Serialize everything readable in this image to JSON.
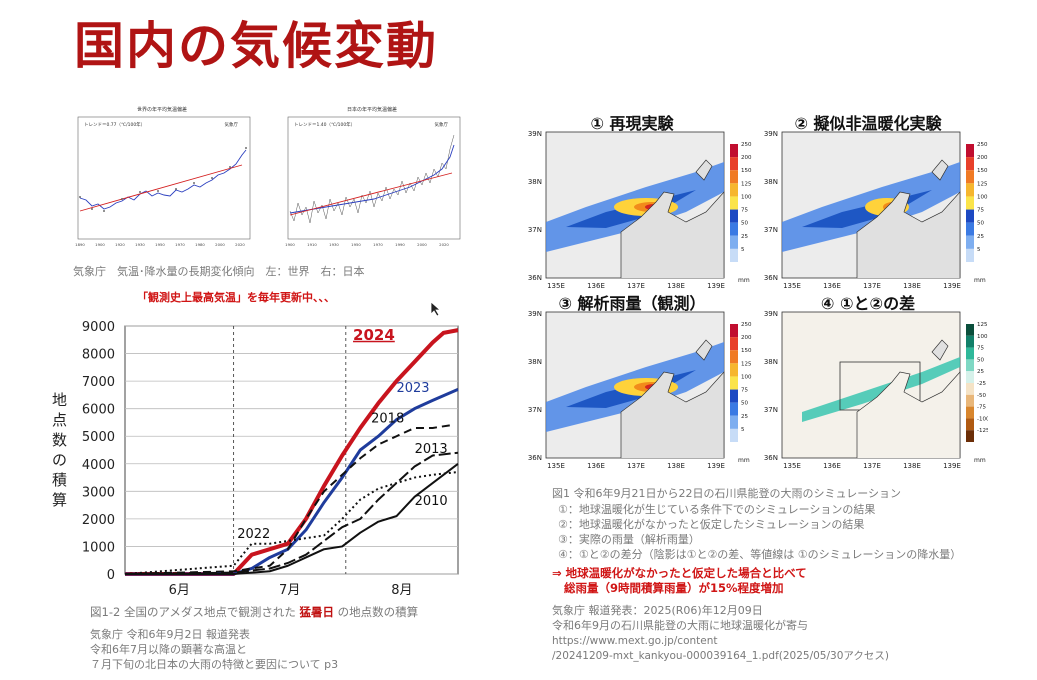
{
  "slide": {
    "title": "国内の気候変動"
  },
  "top_charts": {
    "left": {
      "title": "世界の年平均気温偏差",
      "trend": "トレンド＝0.77（℃/100年）",
      "legend": "気象庁"
    },
    "right": {
      "title": "日本の年平均気温偏差",
      "trend": "トレンド＝1.40（℃/100年）",
      "legend": "気象庁"
    },
    "caption": "気象庁　気温･降水量の長期変化傾向　左：世界　右：日本"
  },
  "headline": "「観測史上最高気温」を毎年更新中、、、",
  "main_chart": {
    "ylabel_chars": [
      "地",
      "点",
      "数",
      "の",
      "積",
      "算"
    ],
    "fig_caption_pre": "図1-2 全国のアメダス地点で観測された ",
    "fig_caption_em": "猛暑日",
    "fig_caption_post": " の地点数の積算",
    "source_lines": [
      "気象庁 令和6年9月2日 報道発表",
      "令和6年7月以降の顕著な高温と",
      "７月下旬の北日本の大雨の特徴と要因について p3"
    ]
  },
  "chart_data": {
    "type": "line",
    "xlabel": "",
    "ylabel": "地点数の積算",
    "x_ticks": [
      "6月",
      "7月",
      "8月"
    ],
    "ylim": [
      0,
      9000
    ],
    "y_ticks": [
      0,
      1000,
      2000,
      3000,
      4000,
      5000,
      6000,
      7000,
      8000,
      9000
    ],
    "x_range_days": [
      0,
      92
    ],
    "series": [
      {
        "name": "2024",
        "color": "#c8141e",
        "dash": "",
        "width": 4,
        "x": [
          0,
          30,
          35,
          40,
          45,
          50,
          55,
          60,
          65,
          70,
          75,
          80,
          85,
          88,
          92
        ],
        "y": [
          0,
          0,
          700,
          900,
          1100,
          2000,
          3200,
          4300,
          5300,
          6200,
          7000,
          7700,
          8400,
          8750,
          8850
        ]
      },
      {
        "name": "2023",
        "color": "#1f3c9c",
        "dash": "",
        "width": 3,
        "x": [
          0,
          30,
          35,
          40,
          45,
          50,
          55,
          60,
          65,
          70,
          75,
          80,
          85,
          92
        ],
        "y": [
          0,
          0,
          200,
          600,
          900,
          1600,
          2600,
          3500,
          4500,
          5000,
          5600,
          6000,
          6300,
          6700
        ]
      },
      {
        "name": "2018",
        "color": "#111111",
        "dash": "8,5",
        "width": 2,
        "x": [
          0,
          30,
          40,
          45,
          50,
          55,
          60,
          65,
          70,
          75,
          80,
          85,
          90
        ],
        "y": [
          0,
          100,
          300,
          900,
          2000,
          3000,
          3600,
          4200,
          4700,
          5000,
          5300,
          5300,
          5400
        ]
      },
      {
        "name": "2013",
        "color": "#111111",
        "dash": "12,4",
        "width": 2,
        "x": [
          0,
          30,
          40,
          45,
          50,
          55,
          60,
          65,
          70,
          75,
          80,
          85,
          92
        ],
        "y": [
          0,
          50,
          200,
          400,
          700,
          1200,
          1700,
          2000,
          2700,
          3300,
          3900,
          4300,
          4400
        ]
      },
      {
        "name": "2010",
        "color": "#111111",
        "dash": "",
        "width": 2,
        "x": [
          0,
          30,
          40,
          45,
          50,
          55,
          60,
          65,
          70,
          75,
          80,
          85,
          92
        ],
        "y": [
          0,
          0,
          100,
          300,
          600,
          900,
          1000,
          1500,
          1900,
          2100,
          2800,
          3300,
          4000
        ]
      },
      {
        "name": "2022",
        "color": "#111111",
        "dash": "2,3",
        "width": 2,
        "x": [
          0,
          30,
          35,
          40,
          45,
          50,
          55,
          60,
          65,
          70,
          75,
          80,
          85,
          92
        ],
        "y": [
          0,
          300,
          1100,
          1100,
          1200,
          1300,
          1400,
          2000,
          2700,
          3100,
          3300,
          3500,
          3600,
          3700
        ]
      }
    ]
  },
  "sim_panels": {
    "p1_title": "① 再現実験",
    "p2_title": "② 擬似非温暖化実験",
    "p3_title": "③ 解析雨量（観測）",
    "p4_title": "④ ①と②の差",
    "lat_labels": [
      "39N",
      "38N",
      "37N",
      "36N"
    ],
    "lon_labels": [
      "135E",
      "136E",
      "137E",
      "138E",
      "139E"
    ],
    "rain_scale": [
      "250",
      "200",
      "150",
      "125",
      "100",
      "75",
      "50",
      "25",
      "5"
    ],
    "diff_scale": [
      "125",
      "100",
      "75",
      "50",
      "25",
      "-25",
      "-50",
      "-75",
      "-100",
      "-125"
    ],
    "unit": "mm"
  },
  "right_caption": {
    "fig": "図1 令和6年9月21日から22日の石川県能登の大雨のシミュレーション",
    "items": [
      "①：地球温暖化が生じている条件下でのシミュレーションの結果",
      "②：地球温暖化がなかったと仮定したシミュレーションの結果",
      "③：実際の雨量（解析雨量）",
      "④：①と②の差分（陰影は①と②の差、等値線は ①のシミュレーションの降水量）"
    ],
    "conclusion1": "⇒ 地球温暖化がなかったと仮定した場合と比べて",
    "conclusion2": "総雨量（9時間積算雨量）が15%程度増加",
    "source": [
      "気象庁 報道発表：2025(R06)年12月09日",
      "令和6年9月の石川県能登の大雨に地球温暖化が寄与",
      "https://www.mext.go.jp/content",
      "/20241209-mxt_kankyou-000039164_1.pdf(2025/05/30アクセス)"
    ]
  }
}
